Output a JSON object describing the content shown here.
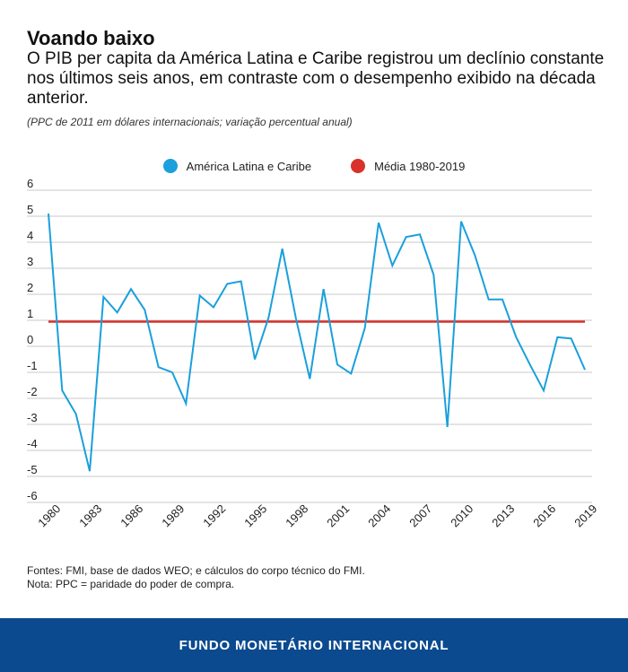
{
  "header": {
    "title": "Voando baixo",
    "subtitle": "O PIB per capita da América Latina e Caribe registrou um declínio constante nos últimos seis anos, em contraste com o desempenho exibido na década anterior.",
    "unit_note": "(PPC de 2011 em dólares internacionais; variação percentual anual)"
  },
  "chart_data": {
    "type": "line",
    "title": "Voando baixo",
    "xlabel": "",
    "ylabel": "",
    "x": [
      1980,
      1981,
      1982,
      1983,
      1984,
      1985,
      1986,
      1987,
      1988,
      1989,
      1990,
      1991,
      1992,
      1993,
      1994,
      1995,
      1996,
      1997,
      1998,
      1999,
      2000,
      2001,
      2002,
      2003,
      2004,
      2005,
      2006,
      2007,
      2008,
      2009,
      2010,
      2011,
      2012,
      2013,
      2014,
      2015,
      2016,
      2017,
      2018,
      2019
    ],
    "ylim": [
      -6,
      6
    ],
    "yticks": [
      -6,
      -5,
      -4,
      -3,
      -2,
      -1,
      0,
      1,
      2,
      3,
      4,
      5,
      6
    ],
    "xtick_labels": [
      "1980",
      "1983",
      "1986",
      "1989",
      "1992",
      "1995",
      "1998",
      "2001",
      "2004",
      "2007",
      "2010",
      "2013",
      "2016",
      "2019"
    ],
    "grid": true,
    "legend_position": "top-center",
    "series": [
      {
        "name": "América Latina e Caribe",
        "color": "#1aa0dc",
        "values": [
          5.1,
          -1.7,
          -2.6,
          -4.8,
          1.9,
          1.3,
          2.2,
          1.4,
          -0.8,
          -1.0,
          -2.2,
          1.95,
          1.5,
          2.4,
          2.5,
          -0.5,
          1.1,
          3.75,
          1.05,
          -1.25,
          2.2,
          -0.7,
          -1.05,
          0.7,
          4.75,
          3.1,
          4.2,
          4.3,
          2.75,
          -3.1,
          4.8,
          3.5,
          1.8,
          1.8,
          0.35,
          -0.7,
          -1.7,
          0.35,
          0.3,
          -0.9
        ]
      },
      {
        "name": "Média 1980-2019",
        "color": "#d8322a",
        "values": [
          0.95,
          0.95,
          0.95,
          0.95,
          0.95,
          0.95,
          0.95,
          0.95,
          0.95,
          0.95,
          0.95,
          0.95,
          0.95,
          0.95,
          0.95,
          0.95,
          0.95,
          0.95,
          0.95,
          0.95,
          0.95,
          0.95,
          0.95,
          0.95,
          0.95,
          0.95,
          0.95,
          0.95,
          0.95,
          0.95,
          0.95,
          0.95,
          0.95,
          0.95,
          0.95,
          0.95,
          0.95,
          0.95,
          0.95,
          0.95
        ]
      }
    ]
  },
  "notes": {
    "sources": "Fontes: FMI, base de dados WEO; e cálculos do corpo técnico do FMI.",
    "note": "Nota: PPC = paridade do poder de compra."
  },
  "footer": {
    "label": "FUNDO MONETÁRIO INTERNACIONAL",
    "background": "#0b4a8f"
  },
  "colors": {
    "grid": "#c8c8c8",
    "axis_text": "#222222"
  }
}
